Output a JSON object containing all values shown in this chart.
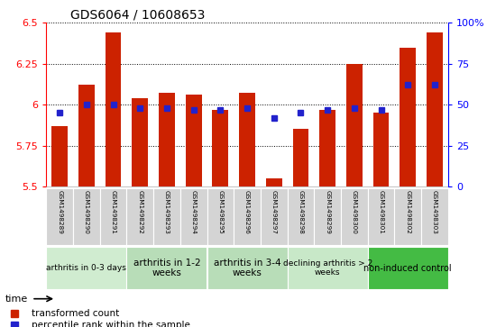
{
  "title": "GDS6064 / 10608653",
  "samples": [
    "GSM1498289",
    "GSM1498290",
    "GSM1498291",
    "GSM1498292",
    "GSM1498293",
    "GSM1498294",
    "GSM1498295",
    "GSM1498296",
    "GSM1498297",
    "GSM1498298",
    "GSM1498299",
    "GSM1498300",
    "GSM1498301",
    "GSM1498302",
    "GSM1498303"
  ],
  "transformed_counts": [
    5.87,
    6.12,
    6.44,
    6.04,
    6.07,
    6.06,
    5.97,
    6.07,
    5.55,
    5.85,
    5.97,
    6.25,
    5.95,
    6.35,
    6.44
  ],
  "percentile_ranks": [
    45,
    50,
    50,
    48,
    48,
    47,
    47,
    48,
    42,
    45,
    47,
    48,
    47,
    62,
    62
  ],
  "ymin": 5.5,
  "ymax": 6.5,
  "yticks": [
    5.5,
    5.75,
    6.0,
    6.25,
    6.5
  ],
  "ytick_labels": [
    "5.5",
    "5.75",
    "6",
    "6.25",
    "6.5"
  ],
  "y2min": 0,
  "y2max": 100,
  "y2ticks": [
    0,
    25,
    50,
    75,
    100
  ],
  "y2tick_labels": [
    "0",
    "25",
    "50",
    "75",
    "100%"
  ],
  "bar_color": "#cc2200",
  "dot_color": "#2222cc",
  "groups": [
    {
      "label": "arthritis in 0-3 days",
      "start": 0,
      "end": 3,
      "color": "#d0ecd0",
      "fontsize": 6.5
    },
    {
      "label": "arthritis in 1-2\nweeks",
      "start": 3,
      "end": 6,
      "color": "#b8ddb8",
      "fontsize": 7.5
    },
    {
      "label": "arthritis in 3-4\nweeks",
      "start": 6,
      "end": 9,
      "color": "#b8ddb8",
      "fontsize": 7.5
    },
    {
      "label": "declining arthritis > 2\nweeks",
      "start": 9,
      "end": 12,
      "color": "#c8e8c8",
      "fontsize": 6.5
    },
    {
      "label": "non-induced control",
      "start": 12,
      "end": 15,
      "color": "#44bb44",
      "fontsize": 7.0
    }
  ],
  "legend_labels": [
    "transformed count",
    "percentile rank within the sample"
  ],
  "bar_color_legend": "#cc2200",
  "dot_color_legend": "#2222cc"
}
